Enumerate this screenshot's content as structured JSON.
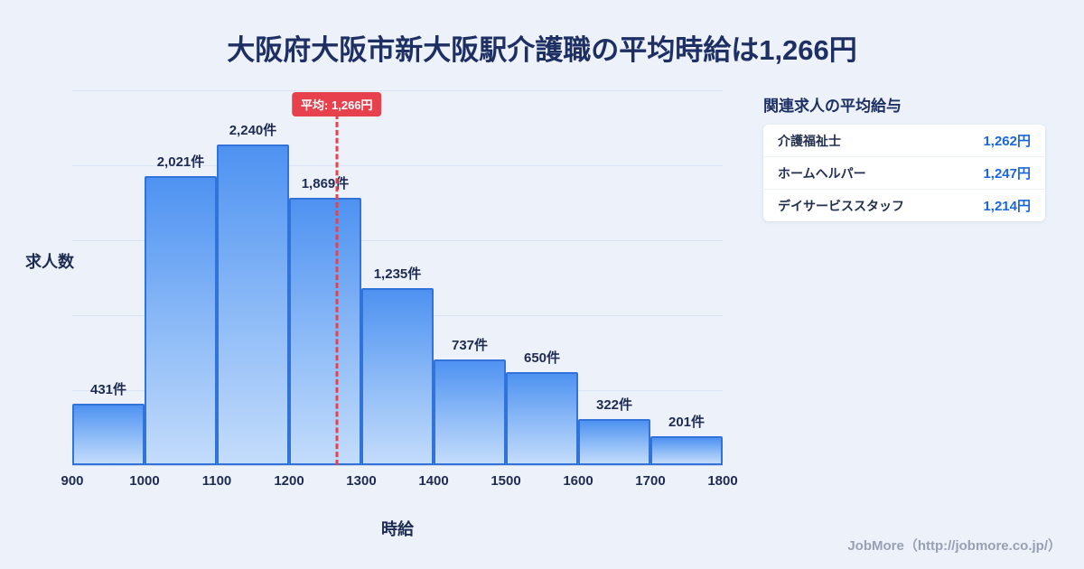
{
  "page": {
    "title": "大阪府大阪市新大阪駅介護職の平均時給は1,266円",
    "footer": "JobMore（http://jobmore.co.jp/）"
  },
  "chart_data": {
    "type": "bar",
    "title": "大阪府大阪市新大阪駅介護職の平均時給は1,266円",
    "xlabel": "時給",
    "ylabel": "求人数",
    "x_ticks": [
      900,
      1000,
      1100,
      1200,
      1300,
      1400,
      1500,
      1600,
      1700,
      1800
    ],
    "x_range": [
      900,
      1800
    ],
    "categories": [
      "900-1000",
      "1000-1100",
      "1100-1200",
      "1200-1300",
      "1300-1400",
      "1400-1500",
      "1500-1600",
      "1600-1700",
      "1700-1800"
    ],
    "values": [
      431,
      2021,
      2240,
      1869,
      1235,
      737,
      650,
      322,
      201
    ],
    "value_labels": [
      "431件",
      "2,021件",
      "2,240件",
      "1,869件",
      "1,235件",
      "737件",
      "650件",
      "322件",
      "201件"
    ],
    "average": 1266,
    "average_label": "平均: 1,266円",
    "grid": "horizontal",
    "legend": "none",
    "colors": {
      "bar_top": "#4e92f1",
      "bar_bottom": "#c3dcfb",
      "bar_border": "#3273d9",
      "avg_line": "#e8414e",
      "accent_blue": "#1a66dd",
      "title_navy": "#1d2f63",
      "background": "#edf2fa"
    }
  },
  "side_panel": {
    "title": "関連求人の平均給与",
    "rows": [
      {
        "label": "介護福祉士",
        "value": "1,262円"
      },
      {
        "label": "ホームヘルパー",
        "value": "1,247円"
      },
      {
        "label": "デイサービススタッフ",
        "value": "1,214円"
      }
    ]
  }
}
